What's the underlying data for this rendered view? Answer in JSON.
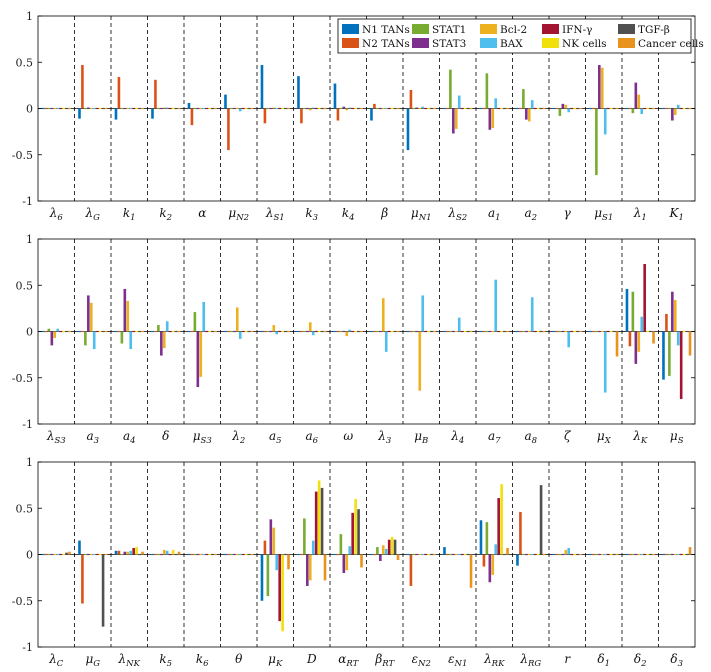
{
  "chart_data": {
    "type": "bar",
    "ylim": [
      -1,
      1
    ],
    "yticks": [
      "1",
      "0.5",
      "0",
      "-0.5",
      "-1"
    ],
    "legend": {
      "position": "top-right",
      "entries": [
        {
          "name": "N1 TANs",
          "color": "#0072BD"
        },
        {
          "name": "N2 TANs",
          "color": "#D95319"
        },
        {
          "name": "STAT1",
          "color": "#77AC30"
        },
        {
          "name": "STAT3",
          "color": "#7E2F8E"
        },
        {
          "name": "Bcl-2",
          "color": "#EDB120"
        },
        {
          "name": "BAX",
          "color": "#4DBEEE"
        },
        {
          "name": "IFN-γ",
          "color": "#A2142F"
        },
        {
          "name": "NK cells",
          "color": "#F2E00C"
        },
        {
          "name": "TGF-β",
          "color": "#505050"
        },
        {
          "name": "Cancer cells",
          "color": "#E8931E"
        }
      ]
    },
    "panels": [
      {
        "categories": [
          {
            "base": "λ",
            "sub": "6"
          },
          {
            "base": "λ",
            "sub": "G"
          },
          {
            "base": "k",
            "sub": "1"
          },
          {
            "base": "k",
            "sub": "2"
          },
          {
            "base": "α",
            "sub": ""
          },
          {
            "base": "μ",
            "sub": "N2"
          },
          {
            "base": "λ",
            "sub": "S1"
          },
          {
            "base": "k",
            "sub": "3"
          },
          {
            "base": "k",
            "sub": "4"
          },
          {
            "base": "β",
            "sub": ""
          },
          {
            "base": "μ",
            "sub": "N1"
          },
          {
            "base": "λ",
            "sub": "S2"
          },
          {
            "base": "a",
            "sub": "1"
          },
          {
            "base": "a",
            "sub": "2"
          },
          {
            "base": "γ",
            "sub": ""
          },
          {
            "base": "μ",
            "sub": "S1"
          },
          {
            "base": "λ",
            "sub": "1"
          },
          {
            "base": "K",
            "sub": "1"
          }
        ],
        "values": [
          [
            0,
            0,
            0,
            0,
            0,
            0,
            0,
            0,
            0,
            0
          ],
          [
            -0.11,
            0.47,
            0,
            0.01,
            0,
            0,
            0,
            0,
            0,
            0
          ],
          [
            -0.12,
            0.34,
            0,
            0,
            0,
            0,
            0,
            0,
            0,
            0
          ],
          [
            -0.11,
            0.31,
            0,
            0,
            0.01,
            0.01,
            0,
            0,
            0,
            0
          ],
          [
            0.06,
            -0.18,
            0,
            0,
            0,
            0,
            0,
            0,
            0,
            0
          ],
          [
            0.15,
            -0.45,
            0,
            0,
            0,
            -0.03,
            0,
            0,
            0,
            0
          ],
          [
            0.47,
            -0.16,
            0,
            0,
            0.01,
            0,
            0,
            0,
            0,
            0
          ],
          [
            0.35,
            -0.16,
            0,
            0,
            -0.02,
            0.01,
            0,
            0,
            0,
            0
          ],
          [
            0.27,
            -0.13,
            0,
            0.02,
            -0.02,
            0.01,
            0,
            0,
            0,
            0
          ],
          [
            -0.13,
            0.05,
            0,
            0,
            0,
            0,
            0,
            0,
            0,
            0
          ],
          [
            -0.45,
            0.2,
            0,
            0.01,
            0,
            0.02,
            0,
            0,
            0,
            0
          ],
          [
            0,
            0,
            0.42,
            -0.27,
            -0.22,
            0.14,
            0,
            0,
            0,
            0
          ],
          [
            0,
            0,
            0.38,
            -0.23,
            -0.21,
            0.11,
            0,
            0,
            0,
            0
          ],
          [
            0,
            0,
            0.21,
            -0.12,
            -0.14,
            0.09,
            0,
            0,
            0,
            0
          ],
          [
            0,
            0,
            -0.08,
            0.05,
            0.04,
            -0.04,
            0,
            0,
            0,
            0
          ],
          [
            0,
            0,
            -0.72,
            0.47,
            0.44,
            -0.28,
            0,
            0,
            0,
            0
          ],
          [
            0,
            0,
            -0.05,
            0.28,
            0.15,
            -0.06,
            0,
            0,
            0,
            0
          ],
          [
            0,
            0,
            0,
            -0.13,
            -0.07,
            0.04,
            0,
            0,
            0,
            0
          ]
        ]
      },
      {
        "categories": [
          {
            "base": "λ",
            "sub": "S3"
          },
          {
            "base": "a",
            "sub": "3"
          },
          {
            "base": "a",
            "sub": "4"
          },
          {
            "base": "δ",
            "sub": ""
          },
          {
            "base": "μ",
            "sub": "S3"
          },
          {
            "base": "λ",
            "sub": "2"
          },
          {
            "base": "a",
            "sub": "5"
          },
          {
            "base": "a",
            "sub": "6"
          },
          {
            "base": "ω",
            "sub": ""
          },
          {
            "base": "λ",
            "sub": "3"
          },
          {
            "base": "μ",
            "sub": "B"
          },
          {
            "base": "λ",
            "sub": "4"
          },
          {
            "base": "a",
            "sub": "7"
          },
          {
            "base": "a",
            "sub": "8"
          },
          {
            "base": "ζ",
            "sub": ""
          },
          {
            "base": "μ",
            "sub": "X"
          },
          {
            "base": "λ",
            "sub": "K"
          },
          {
            "base": "μ",
            "sub": "S"
          }
        ],
        "values": [
          [
            0,
            0,
            0.03,
            -0.15,
            -0.07,
            0.03,
            0,
            0,
            0,
            0
          ],
          [
            0,
            0,
            -0.15,
            0.39,
            0.31,
            -0.19,
            0,
            0,
            0,
            0
          ],
          [
            0,
            0,
            -0.13,
            0.46,
            0.33,
            -0.19,
            0,
            0,
            0,
            0
          ],
          [
            0,
            0,
            0.07,
            -0.26,
            -0.18,
            0.11,
            0,
            0,
            0,
            0
          ],
          [
            0,
            0,
            0.21,
            -0.6,
            -0.49,
            0.32,
            0,
            0,
            0,
            0
          ],
          [
            0,
            0,
            0,
            0,
            0.26,
            -0.08,
            0,
            0,
            0,
            0
          ],
          [
            0,
            0,
            0,
            0,
            0.07,
            -0.03,
            0,
            0,
            0,
            0
          ],
          [
            0,
            0,
            0,
            0,
            0.1,
            -0.04,
            0,
            0,
            0,
            0
          ],
          [
            0,
            0,
            0,
            0,
            -0.05,
            0.02,
            0,
            0,
            0,
            0
          ],
          [
            0,
            0,
            0,
            0,
            0.36,
            -0.22,
            0,
            0,
            0,
            0
          ],
          [
            0,
            0,
            0,
            0,
            -0.64,
            0.39,
            0,
            0,
            0,
            0
          ],
          [
            0,
            0,
            0,
            0,
            0,
            0.15,
            0,
            0,
            0,
            0
          ],
          [
            0,
            0,
            0,
            0,
            0,
            0.56,
            0,
            0,
            0,
            0
          ],
          [
            0,
            0,
            0,
            0,
            0,
            0.37,
            0,
            0,
            0,
            0
          ],
          [
            0,
            0,
            0,
            0,
            0,
            -0.17,
            0,
            0,
            0,
            0
          ],
          [
            0,
            0,
            0,
            0,
            0,
            -0.66,
            0,
            0,
            0,
            -0.27
          ],
          [
            0.46,
            -0.16,
            0.43,
            -0.35,
            -0.22,
            0.16,
            0.73,
            0,
            0,
            -0.13
          ],
          [
            -0.52,
            0.19,
            -0.48,
            0.43,
            0.34,
            -0.15,
            -0.73,
            0,
            0,
            -0.26
          ]
        ]
      },
      {
        "categories": [
          {
            "base": "λ",
            "sub": "C"
          },
          {
            "base": "μ",
            "sub": "G"
          },
          {
            "base": "λ",
            "sub": "NK"
          },
          {
            "base": "k",
            "sub": "5"
          },
          {
            "base": "k",
            "sub": "6"
          },
          {
            "base": "θ",
            "sub": ""
          },
          {
            "base": "μ",
            "sub": "K"
          },
          {
            "base": "D",
            "sub": ""
          },
          {
            "base": "α",
            "sub": "RT"
          },
          {
            "base": "β",
            "sub": "RT"
          },
          {
            "base": "ε",
            "sub": "N2"
          },
          {
            "base": "ε",
            "sub": "N1"
          },
          {
            "base": "λ",
            "sub": "RK"
          },
          {
            "base": "λ",
            "sub": "RG"
          },
          {
            "base": "r",
            "sub": ""
          },
          {
            "base": "δ",
            "sub": "1"
          },
          {
            "base": "δ",
            "sub": "2"
          },
          {
            "base": "δ",
            "sub": "3"
          }
        ],
        "values": [
          [
            0,
            0,
            0,
            0,
            0,
            0,
            0,
            0,
            0.02,
            0.03
          ],
          [
            0.15,
            -0.53,
            0,
            0,
            0,
            0,
            0,
            0,
            -0.78,
            0
          ],
          [
            0.04,
            0.04,
            0,
            0.03,
            0.03,
            0.04,
            0.07,
            0.08,
            0,
            0.03
          ],
          [
            0,
            0,
            0,
            0,
            0.05,
            0.04,
            0,
            0.05,
            0,
            0.03
          ],
          [
            0,
            0,
            0,
            0,
            0,
            0,
            0,
            0,
            0,
            0
          ],
          [
            0,
            0,
            0,
            0,
            0,
            0,
            0,
            0,
            0,
            0
          ],
          [
            -0.5,
            0.15,
            -0.45,
            0.38,
            0.29,
            -0.17,
            -0.72,
            -0.83,
            0,
            -0.16
          ],
          [
            0,
            0,
            0.39,
            -0.34,
            -0.28,
            0.15,
            0.68,
            0.8,
            0.72,
            -0.28
          ],
          [
            0,
            0,
            0.22,
            -0.2,
            -0.17,
            0.09,
            0.45,
            0.6,
            0.49,
            -0.14
          ],
          [
            0,
            0,
            0.08,
            -0.07,
            0.1,
            0.06,
            0.16,
            0.19,
            0.16,
            -0.06
          ],
          [
            0,
            -0.34,
            0,
            0,
            0,
            0,
            0,
            0,
            0,
            0
          ],
          [
            0.08,
            0,
            0,
            0,
            0,
            0,
            0,
            0,
            0,
            -0.36
          ],
          [
            0.37,
            -0.13,
            0.35,
            -0.3,
            -0.22,
            0.11,
            0.61,
            0.76,
            0,
            0.07
          ],
          [
            -0.12,
            0.46,
            0,
            0,
            0,
            0,
            0,
            0,
            0.75,
            0
          ],
          [
            0,
            0,
            0,
            0,
            0.05,
            0.07,
            0,
            0,
            0,
            0
          ],
          [
            0,
            0,
            0,
            0,
            0,
            0,
            0,
            0,
            0,
            0
          ],
          [
            0,
            0,
            0,
            0,
            0,
            0,
            0,
            0,
            0,
            0
          ],
          [
            0,
            0,
            0,
            0,
            0,
            0,
            0,
            0,
            0,
            0.08
          ]
        ]
      }
    ]
  }
}
